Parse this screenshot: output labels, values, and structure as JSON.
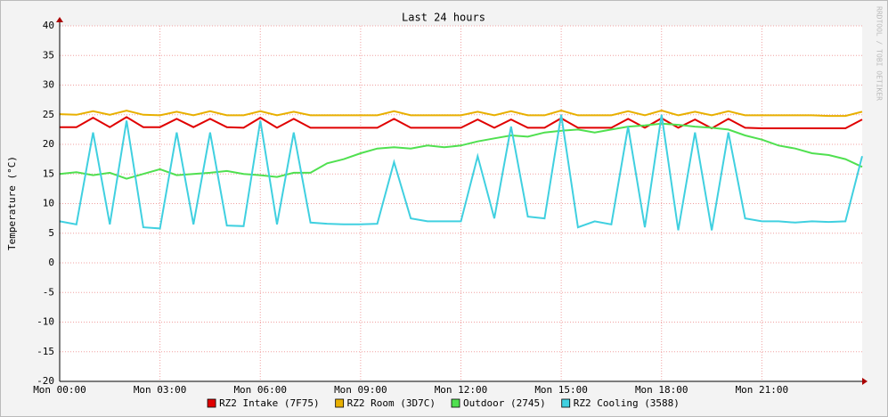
{
  "chart_data": {
    "type": "line",
    "title": "Last 24 hours",
    "y_label": "Temperature (°C)",
    "watermark": "RRDTOOL / TOBI OETIKER",
    "x": [
      0,
      0.5,
      1,
      1.5,
      2,
      2.5,
      3,
      3.5,
      4,
      4.5,
      5,
      5.5,
      6,
      6.5,
      7,
      7.5,
      8,
      8.5,
      9,
      9.5,
      10,
      10.5,
      11,
      11.5,
      12,
      12.5,
      13,
      13.5,
      14,
      14.5,
      15,
      15.5,
      16,
      16.5,
      17,
      17.5,
      18,
      18.5,
      19,
      19.5,
      20,
      20.5,
      21,
      21.5,
      22,
      22.5,
      23,
      23.5,
      24
    ],
    "xlim": [
      0,
      24
    ],
    "xticks": [
      {
        "value": 0,
        "label": "Mon 00:00"
      },
      {
        "value": 3,
        "label": "Mon 03:00"
      },
      {
        "value": 6,
        "label": "Mon 06:00"
      },
      {
        "value": 9,
        "label": "Mon 09:00"
      },
      {
        "value": 12,
        "label": "Mon 12:00"
      },
      {
        "value": 15,
        "label": "Mon 15:00"
      },
      {
        "value": 18,
        "label": "Mon 18:00"
      },
      {
        "value": 21,
        "label": "Mon 21:00"
      }
    ],
    "ylim": [
      -20,
      40
    ],
    "yticks": [
      -20,
      -15,
      -10,
      -5,
      0,
      5,
      10,
      15,
      20,
      25,
      30,
      35,
      40
    ],
    "grid": true,
    "legend": "bottom",
    "series": [
      {
        "name": "RZ2 Intake (7F75)",
        "color": "#e00000",
        "values": [
          22.9,
          22.9,
          24.5,
          22.9,
          24.6,
          22.9,
          22.9,
          24.3,
          22.9,
          24.3,
          22.9,
          22.8,
          24.5,
          22.8,
          24.3,
          22.8,
          22.8,
          22.8,
          22.8,
          22.8,
          24.3,
          22.8,
          22.8,
          22.8,
          22.8,
          24.2,
          22.8,
          24.2,
          22.8,
          22.8,
          24.4,
          22.8,
          22.8,
          22.8,
          24.3,
          22.8,
          24.4,
          22.8,
          24.2,
          22.7,
          24.3,
          22.8,
          22.7,
          22.7,
          22.7,
          22.7,
          22.7,
          22.7,
          24.2
        ]
      },
      {
        "name": "RZ2 Room (3D7C)",
        "color": "#e8b000",
        "values": [
          25.1,
          25.0,
          25.6,
          25.0,
          25.7,
          25.0,
          24.9,
          25.5,
          24.9,
          25.6,
          24.9,
          24.9,
          25.6,
          24.9,
          25.5,
          24.9,
          24.9,
          24.9,
          24.9,
          24.9,
          25.6,
          24.9,
          24.9,
          24.9,
          24.9,
          25.5,
          24.9,
          25.6,
          24.9,
          24.9,
          25.7,
          24.9,
          24.9,
          24.9,
          25.6,
          24.9,
          25.7,
          24.9,
          25.5,
          24.9,
          25.6,
          24.9,
          24.9,
          24.9,
          24.9,
          24.9,
          24.8,
          24.8,
          25.5
        ]
      },
      {
        "name": "Outdoor (2745)",
        "color": "#50e050",
        "values": [
          15.0,
          15.3,
          14.8,
          15.2,
          14.2,
          15.0,
          15.8,
          14.8,
          15.0,
          15.2,
          15.5,
          15.0,
          14.8,
          14.5,
          15.2,
          15.2,
          16.8,
          17.5,
          18.5,
          19.3,
          19.5,
          19.3,
          19.8,
          19.5,
          19.8,
          20.5,
          21.0,
          21.5,
          21.3,
          22.0,
          22.3,
          22.5,
          22.0,
          22.5,
          23.0,
          23.2,
          23.5,
          23.3,
          23.0,
          22.8,
          22.5,
          21.5,
          20.8,
          19.8,
          19.3,
          18.5,
          18.2,
          17.5,
          16.2
        ]
      },
      {
        "name": "RZ2 Cooling (3588)",
        "color": "#40d0e0",
        "values": [
          7.0,
          6.5,
          22,
          6.5,
          24,
          6.0,
          5.8,
          22,
          6.5,
          22,
          6.3,
          6.2,
          24,
          6.5,
          22,
          6.8,
          6.6,
          6.5,
          6.5,
          6.6,
          17,
          7.5,
          7.0,
          7.0,
          7.0,
          18,
          7.5,
          23,
          7.8,
          7.5,
          25,
          6.0,
          7.0,
          6.5,
          23,
          6.0,
          25,
          5.5,
          22,
          5.5,
          22,
          7.5,
          7.0,
          7.0,
          6.8,
          7.0,
          6.9,
          7.0,
          18
        ]
      }
    ]
  }
}
